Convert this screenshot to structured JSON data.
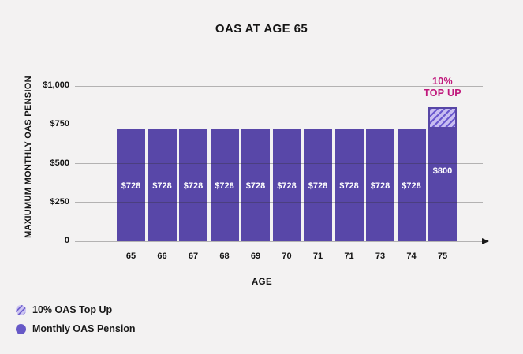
{
  "page": {
    "title": "OAS AT AGE 65"
  },
  "chart_data": {
    "type": "bar",
    "title": "OAS AT AGE 65",
    "xlabel": "AGE",
    "ylabel": "MAXIUMUM MONTHLY OAS PENSION",
    "categories": [
      "65",
      "66",
      "67",
      "68",
      "69",
      "70",
      "71",
      "71",
      "73",
      "74",
      "75"
    ],
    "series": [
      {
        "name": "Monthly OAS Pension",
        "values": [
          728,
          728,
          728,
          728,
          728,
          728,
          728,
          728,
          728,
          728,
          728
        ]
      },
      {
        "name": "10% OAS Top Up",
        "values": [
          0,
          0,
          0,
          0,
          0,
          0,
          0,
          0,
          0,
          0,
          72
        ]
      }
    ],
    "bar_labels": [
      "$728",
      "$728",
      "$728",
      "$728",
      "$728",
      "$728",
      "$728",
      "$728",
      "$728",
      "$728",
      "$800"
    ],
    "annotation_lines": [
      "10%",
      "TOP UP"
    ],
    "ylim": [
      0,
      1000
    ],
    "yticks": [
      {
        "value": 0,
        "label": "0"
      },
      {
        "value": 250,
        "label": "$250"
      },
      {
        "value": 500,
        "label": "$500"
      },
      {
        "value": 750,
        "label": "$750"
      },
      {
        "value": 1000,
        "label": "$1,000"
      }
    ],
    "grid": true,
    "legend_position": "bottom-left"
  },
  "legend": {
    "items": [
      {
        "label": "10% OAS Top Up",
        "swatch": "hatched-circle"
      },
      {
        "label": "Monthly OAS Pension",
        "swatch": "solid-circle"
      }
    ]
  },
  "colors": {
    "background": "#F3F2F2",
    "bar": "#5847A8",
    "hatch_background": "#C7BDF1",
    "hatch_stripe": "#6A58CE",
    "gridline": "#B5B5B5",
    "text": "#141414",
    "bar_label": "#FFFFFF",
    "topup_label": "#C0187C",
    "legend_dot": "#6759C7"
  }
}
